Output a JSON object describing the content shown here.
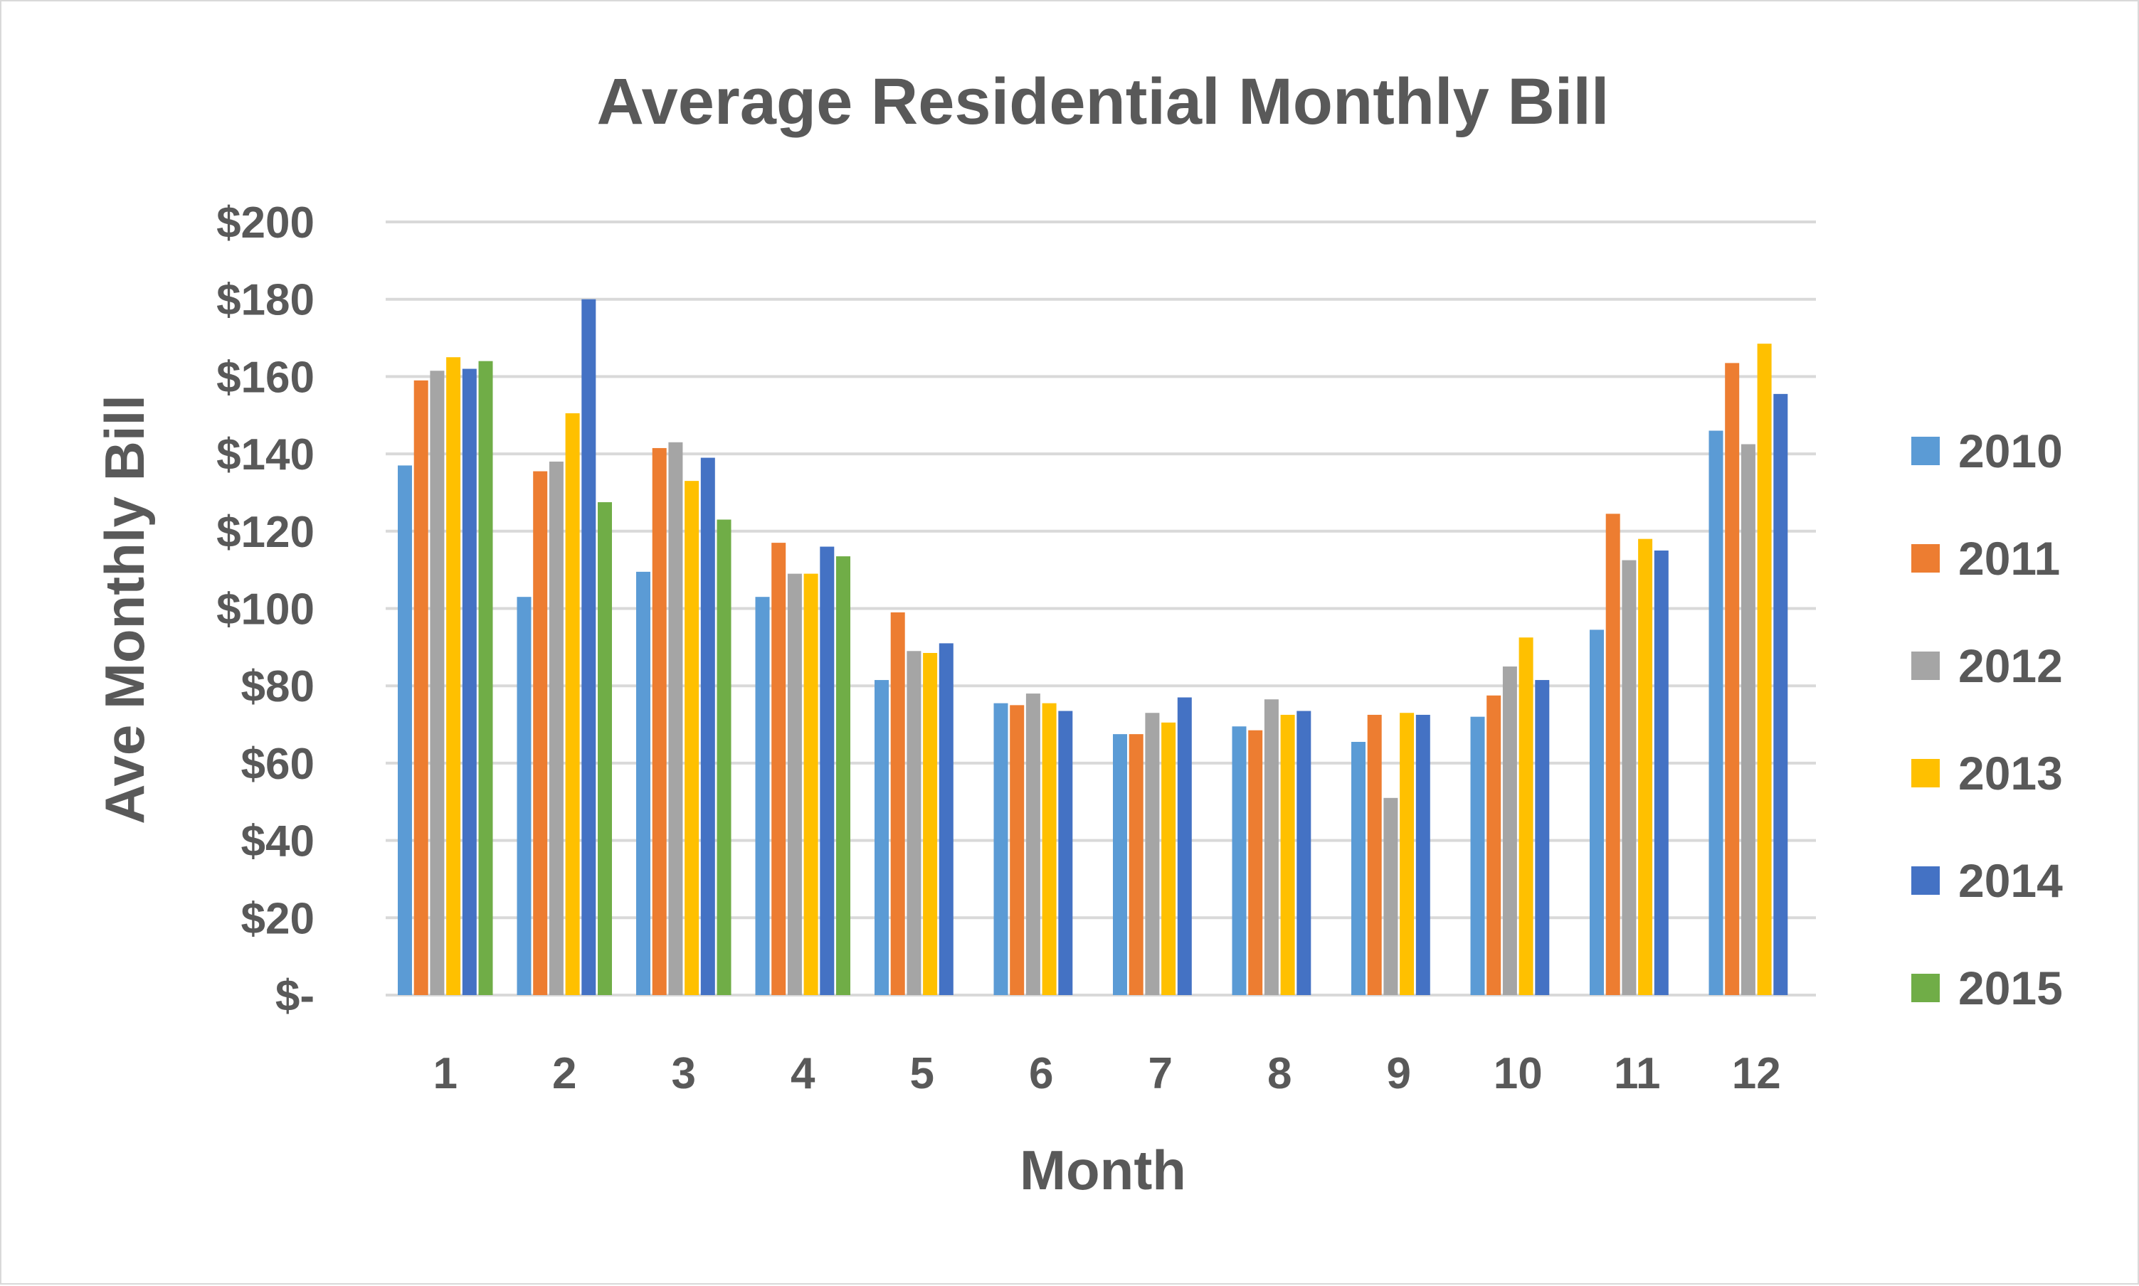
{
  "chart_data": {
    "type": "bar",
    "title": "Average Residential Monthly Bill",
    "xlabel": "Month",
    "ylabel": "Ave Monthly Bill",
    "categories": [
      "1",
      "2",
      "3",
      "4",
      "5",
      "6",
      "7",
      "8",
      "9",
      "10",
      "11",
      "12"
    ],
    "ylim": [
      0,
      200
    ],
    "ytick_values": [
      0,
      20,
      40,
      60,
      80,
      100,
      120,
      140,
      160,
      180,
      200
    ],
    "ytick_labels": [
      "$-",
      "$20",
      "$40",
      "$60",
      "$80",
      "$100",
      "$120",
      "$140",
      "$160",
      "$180",
      "$200"
    ],
    "grid": true,
    "legend_position": "right",
    "series": [
      {
        "name": "2010",
        "color": "#5b9bd5",
        "values": [
          137,
          103,
          109.5,
          103,
          81.5,
          75.5,
          67.5,
          69.5,
          65.5,
          72,
          94.5,
          146
        ]
      },
      {
        "name": "2011",
        "color": "#ed7d31",
        "values": [
          159,
          135.5,
          141.5,
          117,
          99,
          75,
          67.5,
          68.5,
          72.5,
          77.5,
          124.5,
          163.5
        ]
      },
      {
        "name": "2012",
        "color": "#a5a5a5",
        "values": [
          161.5,
          138,
          143,
          109,
          89,
          78,
          73,
          76.5,
          51,
          85,
          112.5,
          142.5
        ]
      },
      {
        "name": "2013",
        "color": "#ffc000",
        "values": [
          165,
          150.5,
          133,
          109,
          88.5,
          75.5,
          70.5,
          72.5,
          73,
          92.5,
          118,
          168.5
        ]
      },
      {
        "name": "2014",
        "color": "#4472c4",
        "values": [
          162,
          180,
          139,
          116,
          91,
          73.5,
          77,
          73.5,
          72.5,
          81.5,
          115,
          155.5
        ]
      },
      {
        "name": "2015",
        "color": "#70ad47",
        "values": [
          164,
          127.5,
          123,
          113.5,
          null,
          null,
          null,
          null,
          null,
          null,
          null,
          null
        ]
      }
    ]
  }
}
